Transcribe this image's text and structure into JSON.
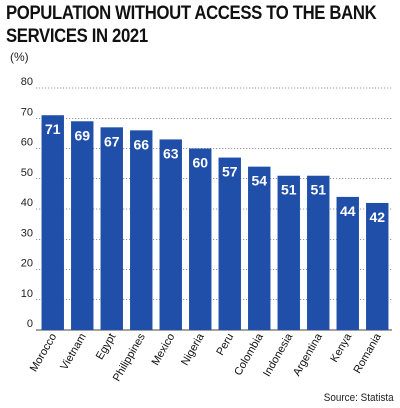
{
  "title_lines": [
    "POPULATION WITHOUT ACCESS TO THE BANK",
    "SERVICES IN 2021"
  ],
  "unit_label": "(%)",
  "source": "Source: Statista",
  "chart_data": {
    "type": "bar",
    "title": "POPULATION WITHOUT ACCESS TO THE BANK SERVICES IN 2021",
    "ylabel": "(%)",
    "xlabel": "",
    "categories": [
      "Morocco",
      "Vietnam",
      "Egypt",
      "Philippines",
      "Mexico",
      "Nigeria",
      "Peru",
      "Colombia",
      "Indonesia",
      "Argentina",
      "Kenya",
      "Romania"
    ],
    "values": [
      71,
      69,
      67,
      66,
      63,
      60,
      57,
      54,
      51,
      51,
      44,
      42
    ],
    "ylim": [
      0,
      80
    ],
    "yticks": [
      0,
      10,
      20,
      30,
      40,
      50,
      60,
      70,
      80
    ],
    "grid": true,
    "data_labels": true,
    "bar_color": "#1f4fa8",
    "label_color": "#ffffff"
  }
}
